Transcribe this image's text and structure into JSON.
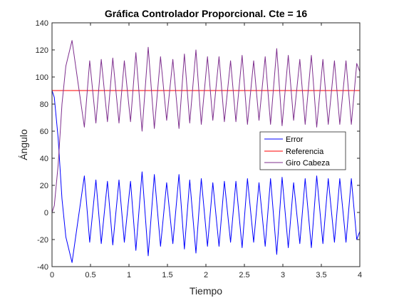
{
  "colors": {
    "background": "#ffffff",
    "axes": "#262626",
    "Error": "#0000ff",
    "Referencia": "#ff0000",
    "Giro Cabeza": "#7e2f8e"
  },
  "chart_data": {
    "type": "line",
    "title": "Gráfica Controlador Proporcional. Cte = 16",
    "xlabel": "Tiempo",
    "ylabel": "Ángulo",
    "xlim": [
      0,
      4
    ],
    "ylim": [
      -40,
      140
    ],
    "xticks": [
      0,
      0.5,
      1,
      1.5,
      2,
      2.5,
      3,
      3.5,
      4
    ],
    "xtick_labels": [
      "0",
      "0.5",
      "1",
      "1.5",
      "2",
      "2.5",
      "3",
      "3.5",
      "4"
    ],
    "yticks": [
      -40,
      -20,
      0,
      20,
      40,
      60,
      80,
      100,
      120,
      140
    ],
    "ytick_labels": [
      "-40",
      "-20",
      "0",
      "20",
      "40",
      "60",
      "80",
      "100",
      "120",
      "140"
    ],
    "grid": false,
    "legend_position": "center-right",
    "series": [
      {
        "name": "Error",
        "x": [
          0,
          0.03,
          0.08,
          0.13,
          0.18,
          0.26,
          0.34,
          0.42,
          0.49,
          0.57,
          0.64,
          0.72,
          0.79,
          0.87,
          0.94,
          1.02,
          1.09,
          1.17,
          1.25,
          1.33,
          1.41,
          1.49,
          1.57,
          1.65,
          1.72,
          1.79,
          1.87,
          1.94,
          2.02,
          2.09,
          2.17,
          2.24,
          2.32,
          2.39,
          2.47,
          2.54,
          2.62,
          2.69,
          2.77,
          2.84,
          2.92,
          2.99,
          3.07,
          3.14,
          3.22,
          3.29,
          3.37,
          3.44,
          3.52,
          3.59,
          3.67,
          3.74,
          3.82,
          3.89,
          3.96,
          4.0
        ],
        "y": [
          90,
          85,
          55,
          10,
          -18,
          -37,
          -5,
          27,
          -22,
          24,
          -23,
          23,
          -24,
          24,
          -22,
          23,
          -28,
          30,
          -32,
          28,
          -25,
          22,
          -23,
          28,
          -27,
          24,
          -30,
          25,
          -25,
          22,
          -25,
          23,
          -22,
          23,
          -26,
          25,
          -22,
          22,
          -25,
          25,
          -31,
          26,
          -26,
          22,
          -23,
          25,
          -26,
          27,
          -23,
          25,
          -22,
          25,
          -22,
          25,
          -20,
          -14
        ]
      },
      {
        "name": "Referencia",
        "x": [
          0,
          4
        ],
        "y": [
          90,
          90
        ]
      },
      {
        "name": "Giro Cabeza",
        "x": [
          0,
          0.03,
          0.08,
          0.13,
          0.18,
          0.26,
          0.34,
          0.42,
          0.49,
          0.57,
          0.64,
          0.72,
          0.79,
          0.87,
          0.94,
          1.02,
          1.09,
          1.17,
          1.25,
          1.33,
          1.41,
          1.49,
          1.57,
          1.65,
          1.72,
          1.79,
          1.87,
          1.94,
          2.02,
          2.09,
          2.17,
          2.24,
          2.32,
          2.39,
          2.47,
          2.54,
          2.62,
          2.69,
          2.77,
          2.84,
          2.92,
          2.99,
          3.07,
          3.14,
          3.22,
          3.29,
          3.37,
          3.44,
          3.52,
          3.59,
          3.67,
          3.74,
          3.82,
          3.89,
          3.96,
          4.0
        ],
        "y": [
          0,
          5,
          35,
          80,
          108,
          127,
          95,
          63,
          112,
          66,
          113,
          67,
          114,
          66,
          112,
          67,
          118,
          60,
          122,
          62,
          115,
          68,
          113,
          62,
          117,
          66,
          120,
          65,
          115,
          68,
          115,
          67,
          112,
          67,
          116,
          65,
          112,
          68,
          115,
          65,
          121,
          64,
          116,
          68,
          113,
          65,
          116,
          63,
          113,
          65,
          112,
          65,
          112,
          65,
          110,
          104
        ]
      }
    ]
  }
}
